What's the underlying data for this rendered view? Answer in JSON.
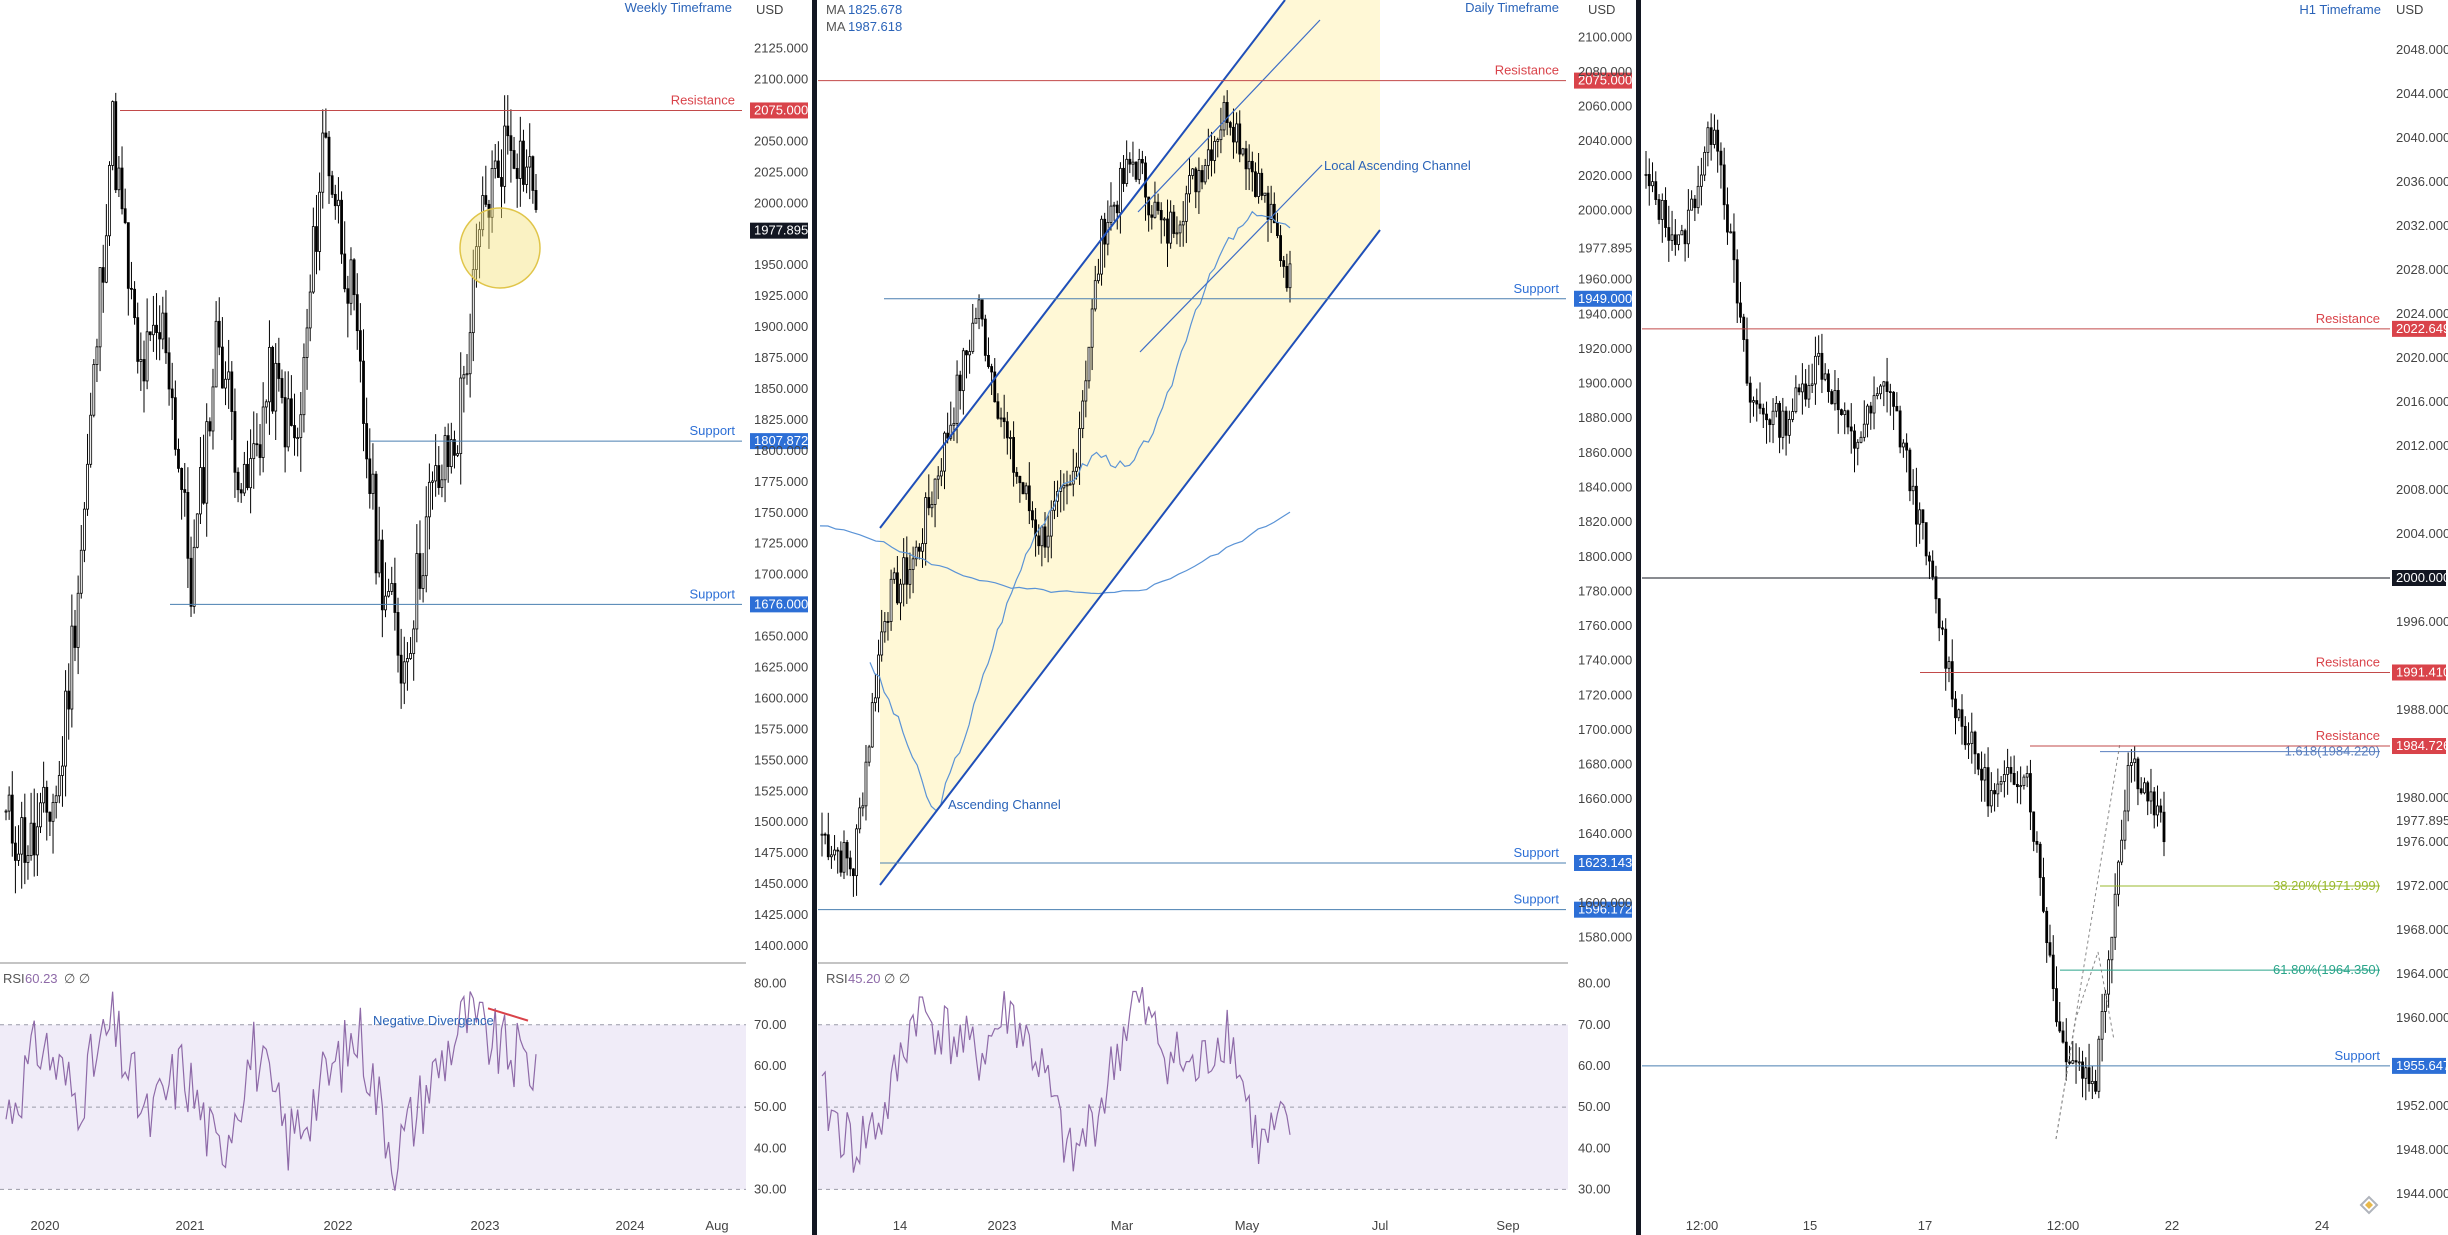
{
  "colors": {
    "resistance": "#d9434a",
    "support": "#2d6fd6",
    "current_price_bg": "#131722",
    "level_2000_bg": "#131722",
    "channel_line": "#1f4fb8",
    "channel_fill": "#fff8d6",
    "rsi_line": "#8e6aa8",
    "rsi_band": "#f0ecf8",
    "fib_382": "#9ab92d",
    "fib_618": "#2aa58a",
    "ma_fast": "#5a93d6",
    "ma_slow": "#5a93d6",
    "candle_up": "#ffffff",
    "candle_down": "#000000",
    "highlight_circle": "#f4e27a",
    "divergence": "#d9434a",
    "divider": "#131722"
  },
  "icons": {
    "brand": "diamond-logo-icon"
  },
  "panels": {
    "weekly": {
      "title": "Weekly Timeframe",
      "currency": "USD",
      "y_labels": [
        "2125.000",
        "2100.000",
        "2075.000",
        "2050.000",
        "2025.000",
        "2000.000",
        "1977.895",
        "1950.000",
        "1925.000",
        "1900.000",
        "1875.000",
        "1850.000",
        "1825.000",
        "1807.872",
        "1800.000",
        "1775.000",
        "1750.000",
        "1725.000",
        "1700.000",
        "1676.000",
        "1650.000",
        "1625.000",
        "1600.000",
        "1575.000",
        "1550.000",
        "1525.000",
        "1500.000",
        "1475.000",
        "1450.000",
        "1425.000",
        "1400.000"
      ],
      "x_labels": [
        "2020",
        "2021",
        "2022",
        "2023",
        "2024",
        "Aug"
      ],
      "levels": [
        {
          "label": "Resistance",
          "value": "2075.000",
          "kind": "resistance"
        },
        {
          "label": "Support",
          "value": "1807.872",
          "kind": "support"
        },
        {
          "label": "Support",
          "value": "1676.000",
          "kind": "support"
        }
      ],
      "current_price": "1977.895",
      "rsi": {
        "label": "RSI",
        "value": "60.23",
        "extra": "∅ ∅",
        "levels": [
          "80.00",
          "70.00",
          "60.00",
          "50.00",
          "40.00",
          "30.00"
        ],
        "annotation": "Negative Divergence"
      }
    },
    "daily": {
      "title": "Daily Timeframe",
      "currency": "USD",
      "ma": [
        {
          "label": "MA",
          "value": "1825.678"
        },
        {
          "label": "MA",
          "value": "1987.618"
        }
      ],
      "y_labels": [
        "2100.000",
        "2080.000",
        "2075.000",
        "2060.000",
        "2040.000",
        "2020.000",
        "2000.000",
        "1977.895",
        "1960.000",
        "1949.000",
        "1940.000",
        "1920.000",
        "1900.000",
        "1880.000",
        "1860.000",
        "1840.000",
        "1820.000",
        "1800.000",
        "1780.000",
        "1760.000",
        "1740.000",
        "1720.000",
        "1700.000",
        "1680.000",
        "1660.000",
        "1640.000",
        "1623.143",
        "1600.000",
        "1596.172",
        "1580.000"
      ],
      "x_labels": [
        "14",
        "2023",
        "Mar",
        "May",
        "Jul",
        "Sep"
      ],
      "levels": [
        {
          "label": "Resistance",
          "value": "2075.000",
          "kind": "resistance"
        },
        {
          "label": "Support",
          "value": "1949.000",
          "kind": "support"
        },
        {
          "label": "Support",
          "value": "1623.143",
          "kind": "support"
        },
        {
          "label": "Support",
          "value": "1596.172",
          "kind": "support"
        }
      ],
      "current_price": "1977.895",
      "annotations": [
        "Local Ascending Channel",
        "Ascending Channel"
      ],
      "rsi": {
        "label": "RSI",
        "value": "45.20",
        "extra": "∅ ∅",
        "levels": [
          "80.00",
          "70.00",
          "60.00",
          "50.00",
          "40.00",
          "30.00"
        ]
      }
    },
    "h1": {
      "title": "H1 Timeframe",
      "currency": "USD",
      "y_labels": [
        "2048.000",
        "2044.000",
        "2040.000",
        "2036.000",
        "2032.000",
        "2028.000",
        "2024.000",
        "2022.649",
        "2020.000",
        "2016.000",
        "2012.000",
        "2008.000",
        "2004.000",
        "2000.000",
        "1996.000",
        "1991.410",
        "1988.000",
        "1984.726",
        "1980.000",
        "1977.895",
        "1976.000",
        "1972.000",
        "1968.000",
        "1964.000",
        "1960.000",
        "1955.647",
        "1952.000",
        "1948.000",
        "1944.000"
      ],
      "x_labels": [
        "12:00",
        "15",
        "17",
        "12:00",
        "22",
        "24"
      ],
      "levels": [
        {
          "label": "Resistance",
          "value": "2022.649",
          "kind": "resistance"
        },
        {
          "label": "",
          "value": "2000.000",
          "kind": "neutral"
        },
        {
          "label": "Resistance",
          "value": "1991.410",
          "kind": "resistance"
        },
        {
          "label": "Resistance",
          "value": "1984.726",
          "kind": "resistance"
        },
        {
          "label": "Support",
          "value": "1955.647",
          "kind": "support"
        }
      ],
      "current_price": "1977.895",
      "fibs": [
        {
          "label": "1.618(1984.220)",
          "kind": "ext"
        },
        {
          "label": "38.20%(1971.999)",
          "kind": "382"
        },
        {
          "label": "61.80%(1964.350)",
          "kind": "618"
        }
      ]
    }
  },
  "chart_data": [
    {
      "type": "line",
      "title": "Weekly Timeframe",
      "currency": "USD",
      "x": [
        "2019-09",
        "2019-12",
        "2020-03",
        "2020-06",
        "2020-08",
        "2020-11",
        "2021-01",
        "2021-03",
        "2021-06",
        "2021-08",
        "2021-11",
        "2022-01",
        "2022-03",
        "2022-04",
        "2022-07",
        "2022-09",
        "2022-11",
        "2023-02",
        "2023-03",
        "2023-04",
        "2023-05"
      ],
      "series": [
        {
          "values": [
            1500,
            1480,
            1530,
            1760,
            2065,
            1860,
            1900,
            1690,
            1900,
            1760,
            1860,
            1800,
            2060,
            1930,
            1720,
            1625,
            1760,
            1810,
            1990,
            2060,
            2010
          ]
        }
      ],
      "ylim": [
        1400,
        2140
      ],
      "levels": {
        "resistance": [
          2075.0
        ],
        "support": [
          1807.872,
          1676.0
        ]
      },
      "rsi": {
        "value": 60.23,
        "levels": [
          30,
          50,
          70
        ]
      }
    },
    {
      "type": "line",
      "title": "Daily Timeframe",
      "currency": "USD",
      "x": [
        "2022-11-03",
        "2022-11-14",
        "2022-12-01",
        "2022-12-20",
        "2023-01-10",
        "2023-01-26",
        "2023-02-10",
        "2023-02-28",
        "2023-03-08",
        "2023-03-20",
        "2023-04-05",
        "2023-04-13",
        "2023-04-25",
        "2023-05-04",
        "2023-05-12",
        "2023-05-18"
      ],
      "series": [
        {
          "values": [
            1640,
            1620,
            1770,
            1800,
            1870,
            1945,
            1860,
            1810,
            1840,
            1990,
            2030,
            1985,
            2020,
            2060,
            2015,
            1960
          ]
        }
      ],
      "ylim": [
        1570,
        2110
      ],
      "levels": {
        "resistance": [
          2075.0
        ],
        "support": [
          1949.0,
          1623.143,
          1596.172
        ]
      },
      "ma": [
        1825.678,
        1987.618
      ],
      "rsi": {
        "value": 45.2,
        "levels": [
          30,
          50,
          70
        ]
      }
    },
    {
      "type": "line",
      "title": "H1 Timeframe",
      "currency": "USD",
      "x": [
        "13 12:00",
        "14 00:00",
        "14 12:00",
        "15",
        "15 12:00",
        "16",
        "16 12:00",
        "17",
        "17 12:00",
        "18",
        "18 12:00",
        "19",
        "19 12:00",
        "20",
        "20 12:00",
        "21"
      ],
      "series": [
        {
          "values": [
            2036,
            2030,
            2042,
            2016,
            2014,
            2020,
            2012,
            2018,
            2004,
            1988,
            1980,
            1983,
            1958,
            1954,
            1984,
            1977
          ]
        }
      ],
      "ylim": [
        1943,
        2050
      ],
      "levels": {
        "resistance": [
          2022.649,
          1991.41,
          1984.726
        ],
        "neutral": [
          2000.0
        ],
        "support": [
          1955.647
        ]
      },
      "fibs": [
        1984.22,
        1971.999,
        1964.35
      ]
    }
  ]
}
